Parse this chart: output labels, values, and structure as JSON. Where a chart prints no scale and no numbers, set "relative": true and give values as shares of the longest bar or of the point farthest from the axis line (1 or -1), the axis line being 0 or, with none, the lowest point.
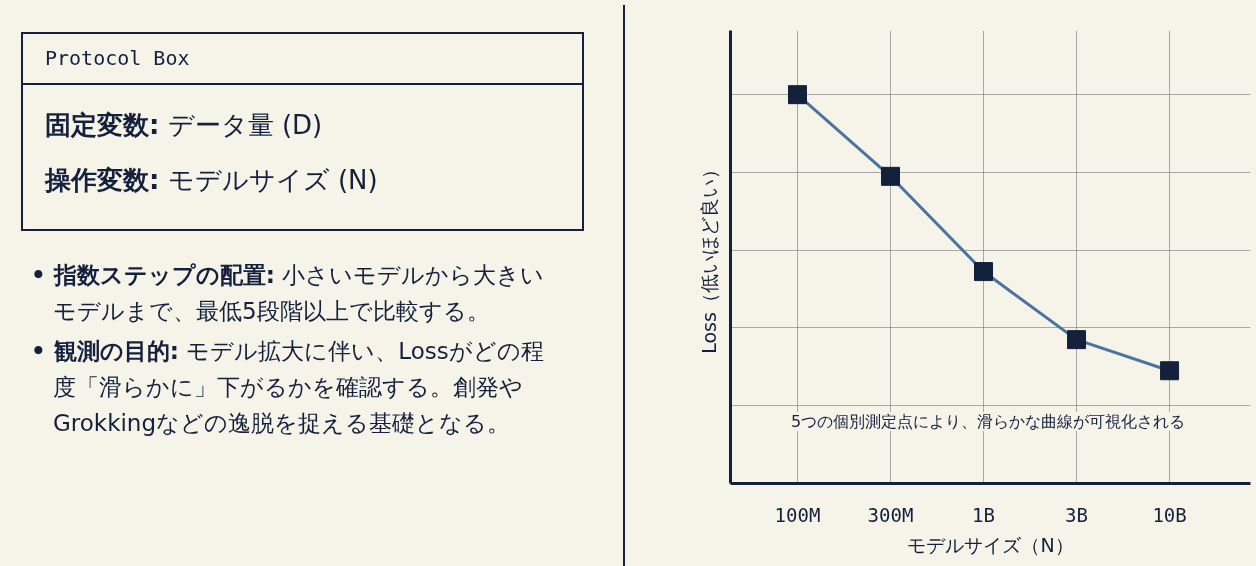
{
  "chart_data": {
    "type": "line",
    "relative": true,
    "categories": [
      "100M",
      "300M",
      "1B",
      "3B",
      "10B"
    ],
    "series": [
      {
        "color": "#4a74a0",
        "values": [
          1,
          0.79,
          0.545,
          0.37,
          0.29
        ]
      }
    ],
    "marker": "square",
    "line_style": "solid",
    "grid": true,
    "xlabel": "モデルサイズ（N）",
    "ylabel": "Loss（低いほど良い）",
    "annotations": [
      "Protocol Box",
      "固定変数: データ量 (D)",
      "操作変数: モデルサイズ (N)",
      "• 指数ステップの配置: 小さいモデルから大きいモデルまで、最低5段階以上で比較する。",
      "• 観測の目的: モデル拡大に伴い、Lossがどの程度「滑らかに」下がるかを確認する。創発やGrokkingなどの逸脱を捉える基礎となる。",
      "5つの個別測定点により、滑らかな曲線が可視化される"
    ]
  }
}
